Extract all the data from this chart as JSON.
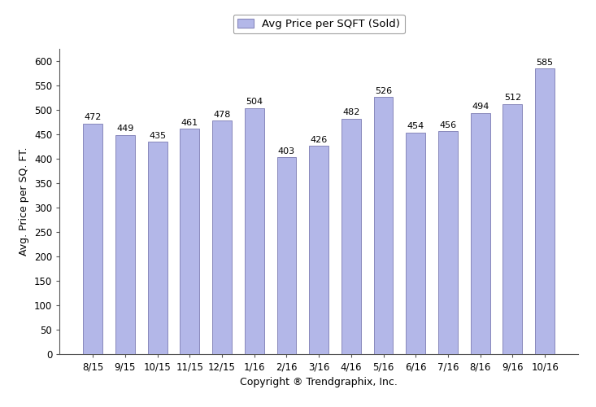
{
  "categories": [
    "8/15",
    "9/15",
    "10/15",
    "11/15",
    "12/15",
    "1/16",
    "2/16",
    "3/16",
    "4/16",
    "5/16",
    "6/16",
    "7/16",
    "8/16",
    "9/16",
    "10/16"
  ],
  "values": [
    472,
    449,
    435,
    461,
    478,
    504,
    403,
    426,
    482,
    526,
    454,
    456,
    494,
    512,
    585
  ],
  "bar_color": "#b3b7e8",
  "bar_edge_color": "#8888bb",
  "ylabel": "Avg. Price per SQ. FT.",
  "xlabel": "Copyright ® Trendgraphix, Inc.",
  "legend_label": "Avg Price per SQFT (Sold)",
  "ylim": [
    0,
    625
  ],
  "yticks": [
    0,
    50,
    100,
    150,
    200,
    250,
    300,
    350,
    400,
    450,
    500,
    550,
    600
  ],
  "title_fontsize": 9.5,
  "label_fontsize": 9,
  "tick_fontsize": 8.5,
  "annotation_fontsize": 8,
  "background_color": "#ffffff",
  "spine_color": "#555555"
}
